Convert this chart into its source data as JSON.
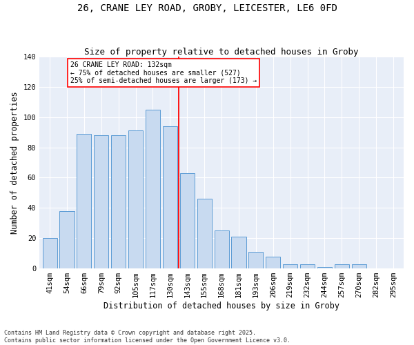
{
  "title1": "26, CRANE LEY ROAD, GROBY, LEICESTER, LE6 0FD",
  "title2": "Size of property relative to detached houses in Groby",
  "xlabel": "Distribution of detached houses by size in Groby",
  "ylabel": "Number of detached properties",
  "categories": [
    "41sqm",
    "54sqm",
    "66sqm",
    "79sqm",
    "92sqm",
    "105sqm",
    "117sqm",
    "130sqm",
    "143sqm",
    "155sqm",
    "168sqm",
    "181sqm",
    "193sqm",
    "206sqm",
    "219sqm",
    "232sqm",
    "244sqm",
    "257sqm",
    "270sqm",
    "282sqm",
    "295sqm"
  ],
  "bar_values": [
    20,
    38,
    89,
    88,
    88,
    91,
    105,
    94,
    63,
    46,
    25,
    21,
    11,
    8,
    3,
    3,
    1,
    3,
    3,
    0,
    0
  ],
  "bar_color": "#c8daf0",
  "bar_edge_color": "#5b9bd5",
  "vline_color": "red",
  "annotation_text": "26 CRANE LEY ROAD: 132sqm\n← 75% of detached houses are smaller (527)\n25% of semi-detached houses are larger (173) →",
  "annotation_box_color": "white",
  "annotation_box_edge": "red",
  "ylim": [
    0,
    140
  ],
  "yticks": [
    0,
    20,
    40,
    60,
    80,
    100,
    120,
    140
  ],
  "bg_color": "#e8eef8",
  "footnote": "Contains HM Land Registry data © Crown copyright and database right 2025.\nContains public sector information licensed under the Open Government Licence v3.0.",
  "title1_fontsize": 10,
  "title2_fontsize": 9,
  "xlabel_fontsize": 8.5,
  "ylabel_fontsize": 8.5,
  "tick_fontsize": 7.5,
  "annot_fontsize": 7
}
